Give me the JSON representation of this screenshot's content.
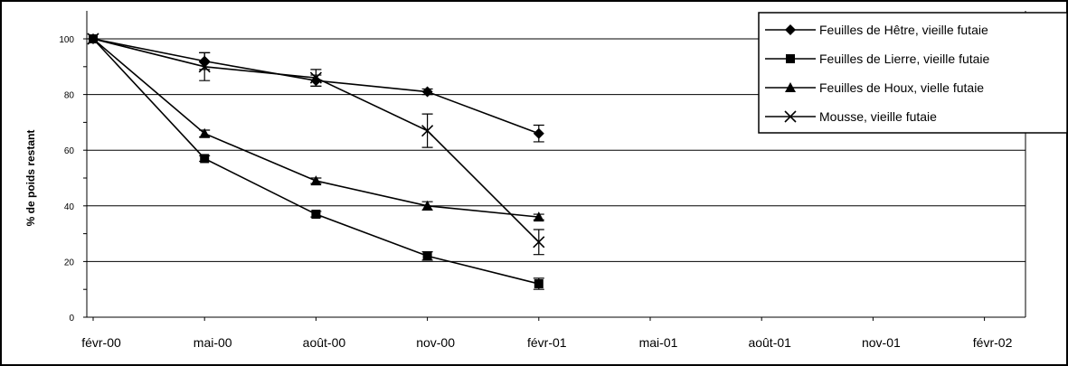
{
  "chart_data": {
    "type": "line",
    "title": "",
    "ylabel": "% de poids restant",
    "xlabel": "",
    "ylim": [
      0,
      100
    ],
    "yticks": [
      0,
      20,
      40,
      60,
      80,
      100
    ],
    "x_ticks": [
      "févr-00",
      "mai-00",
      "août-00",
      "nov-00",
      "févr-01",
      "mai-01",
      "août-01",
      "nov-01",
      "févr-02"
    ],
    "grid": true,
    "legend_position": "top-right",
    "series": [
      {
        "name": "Feuilles de Hêtre, vieille futaie",
        "marker": "diamond",
        "x": [
          "févr-00",
          "mai-00",
          "août-00",
          "nov-00",
          "févr-01"
        ],
        "values": [
          100,
          92,
          85,
          81,
          66
        ],
        "error": [
          0,
          3,
          2,
          1,
          3
        ]
      },
      {
        "name": "Feuilles de Lierre, vieille futaie",
        "marker": "square",
        "x": [
          "févr-00",
          "mai-00",
          "août-00",
          "nov-00",
          "févr-01"
        ],
        "values": [
          100,
          57,
          37,
          22,
          12
        ],
        "error": [
          0,
          1,
          1,
          1.5,
          2
        ]
      },
      {
        "name": "Feuilles de Houx, vielle futaie",
        "marker": "triangle",
        "x": [
          "févr-00",
          "mai-00",
          "août-00",
          "nov-00",
          "févr-01"
        ],
        "values": [
          100,
          66,
          49,
          40,
          36
        ],
        "error": [
          0,
          1.2,
          1,
          1.5,
          1
        ]
      },
      {
        "name": "Mousse, vieille futaie",
        "marker": "x",
        "x": [
          "févr-00",
          "mai-00",
          "août-00",
          "nov-00",
          "févr-01"
        ],
        "values": [
          100,
          90,
          86,
          67,
          27
        ],
        "error": [
          0,
          5,
          3,
          6,
          4.5
        ]
      }
    ]
  }
}
